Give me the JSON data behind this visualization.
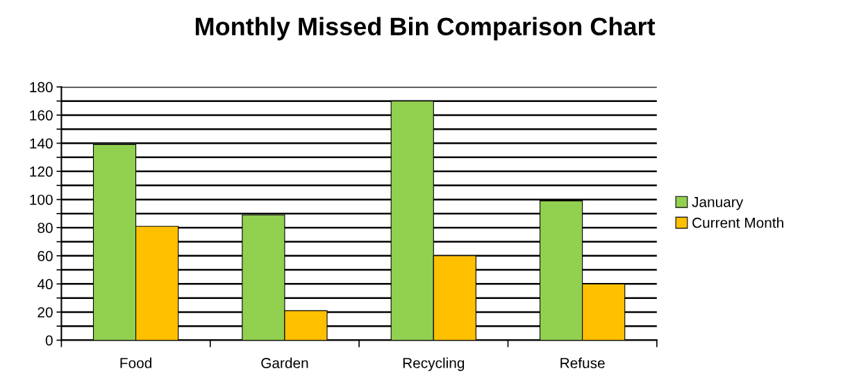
{
  "chart_data": {
    "type": "bar",
    "title": "Monthly Missed Bin Comparison Chart",
    "categories": [
      "Food",
      "Garden",
      "Recycling",
      "Refuse"
    ],
    "series": [
      {
        "name": "January",
        "color": "#92d050",
        "values": [
          139,
          89,
          170,
          99
        ]
      },
      {
        "name": "Current Month",
        "color": "#ffc000",
        "values": [
          81,
          21,
          60,
          40
        ]
      }
    ],
    "ylim": [
      0,
      180
    ],
    "yticks": [
      0,
      {
        "value": 10,
        "label": null
      },
      20,
      {
        "value": 30,
        "label": null
      },
      40,
      {
        "value": 50,
        "label": null
      },
      60,
      {
        "value": 70,
        "label": null
      },
      80,
      {
        "value": 90,
        "label": null
      },
      100,
      {
        "value": 110,
        "label": null
      },
      120,
      {
        "value": 130,
        "label": null
      },
      140,
      {
        "value": 150,
        "label": null
      },
      160,
      {
        "value": 170,
        "label": null
      },
      180
    ],
    "grid": "y",
    "legend": "right"
  }
}
